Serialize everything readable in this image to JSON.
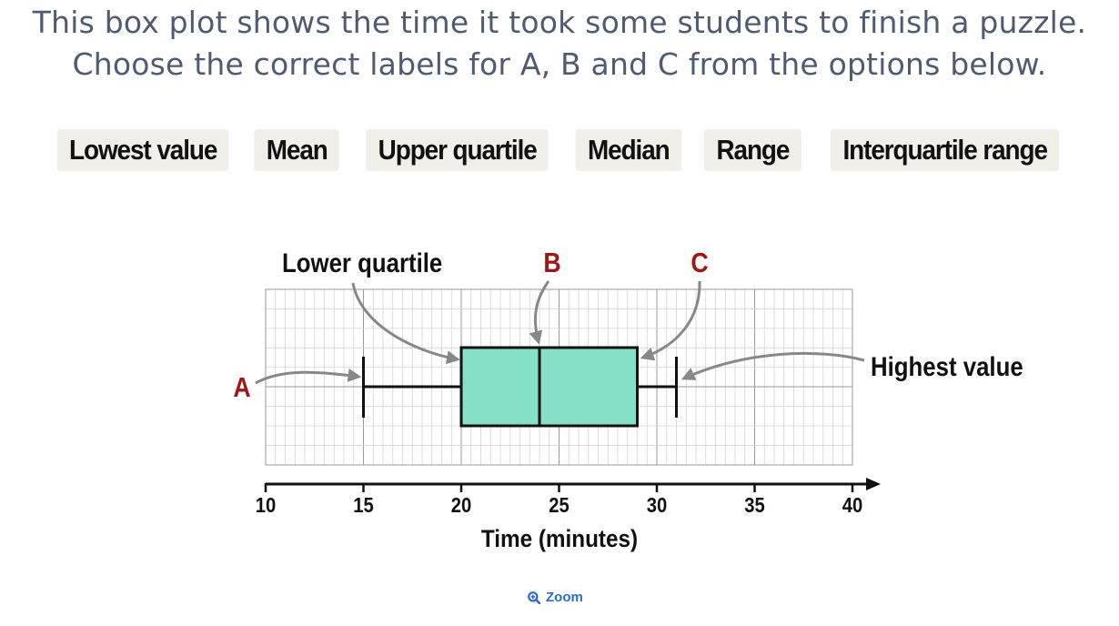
{
  "question": {
    "line1": "This box plot shows the time it took some students to finish a puzzle.",
    "line2": "Choose the correct labels for A, B and C from the options below."
  },
  "options": [
    "Lowest value",
    "Mean",
    "Upper quartile",
    "Median",
    "Range",
    "Interquartile range"
  ],
  "chart_data": {
    "type": "boxplot",
    "xlabel": "Time (minutes)",
    "xlim": [
      10,
      40
    ],
    "ticks": [
      10,
      15,
      20,
      25,
      30,
      35,
      40
    ],
    "grid": true,
    "box": {
      "min": 15,
      "q1": 20,
      "median": 24,
      "q3": 29,
      "max": 31
    },
    "colors": {
      "box_fill": "#86e0c8",
      "marker": "#a01616",
      "arrow": "#888888"
    },
    "annotations": [
      {
        "text": "A",
        "points_to": "min",
        "style": "marker"
      },
      {
        "text": "Lower quartile",
        "points_to": "q1",
        "style": "label"
      },
      {
        "text": "B",
        "points_to": "median",
        "style": "marker"
      },
      {
        "text": "C",
        "points_to": "q3",
        "style": "marker"
      },
      {
        "text": "Highest value",
        "points_to": "max",
        "style": "label"
      }
    ]
  },
  "zoom": {
    "label": "Zoom",
    "icon": "zoom-in-icon"
  }
}
